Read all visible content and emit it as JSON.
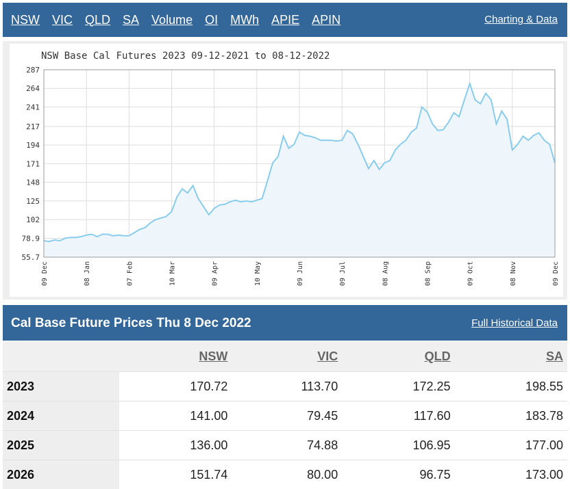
{
  "nav": {
    "items": [
      "NSW",
      "VIC",
      "QLD",
      "SA",
      "Volume",
      "OI",
      "MWh",
      "APIE",
      "APIN"
    ],
    "charting_link": "Charting & Data"
  },
  "chart": {
    "title": "NSW Base Cal Futures 2023 09-12-2021 to 08-12-2022"
  },
  "chart_data": {
    "type": "area",
    "title": "NSW Base Cal Futures 2023 09-12-2021 to 08-12-2022",
    "xlabel": "",
    "ylabel": "",
    "ylim": [
      55.7,
      287
    ],
    "y_ticks": [
      "287",
      "264",
      "241",
      "217",
      "194",
      "171",
      "148",
      "125",
      "102",
      "78.9",
      "55.7"
    ],
    "x_ticks": [
      "09 Dec",
      "08 Jan",
      "07 Feb",
      "10 Mar",
      "09 Apr",
      "10 May",
      "09 Jun",
      "09 Jul",
      "08 Aug",
      "08 Sep",
      "09 Oct",
      "08 Nov",
      "09 Dec"
    ],
    "grid": true,
    "line_color": "#88ccee",
    "fill_color": "#eef6fb",
    "series": [
      {
        "values": [
          76,
          75,
          77,
          76,
          79,
          80,
          80,
          81,
          83,
          84,
          81,
          84,
          84,
          82,
          83,
          82,
          82,
          86,
          90,
          92,
          98,
          102,
          104,
          106,
          112,
          130,
          140,
          135,
          144,
          128,
          118,
          108,
          116,
          120,
          121,
          124,
          126,
          124,
          125,
          124,
          126,
          128,
          150,
          172,
          180,
          205,
          190,
          195,
          210,
          206,
          205,
          203,
          200,
          200,
          200,
          199,
          200,
          212,
          208,
          195,
          180,
          165,
          175,
          164,
          172,
          175,
          188,
          195,
          200,
          210,
          215,
          241,
          235,
          220,
          212,
          213,
          222,
          234,
          229,
          250,
          270,
          250,
          245,
          258,
          250,
          220,
          236,
          226,
          188,
          195,
          205,
          200,
          206,
          209,
          200,
          195,
          172
        ]
      }
    ]
  },
  "table": {
    "title": "Cal Base Future Prices Thu 8 Dec 2022",
    "historical_link": "Full Historical Data",
    "columns": [
      "NSW",
      "VIC",
      "QLD",
      "SA"
    ],
    "rows": [
      {
        "year": "2023",
        "values": [
          "170.72",
          "113.70",
          "172.25",
          "198.55"
        ]
      },
      {
        "year": "2024",
        "values": [
          "141.00",
          "79.45",
          "117.60",
          "183.78"
        ]
      },
      {
        "year": "2025",
        "values": [
          "136.00",
          "74.88",
          "106.95",
          "177.00"
        ]
      },
      {
        "year": "2026",
        "values": [
          "151.74",
          "80.00",
          "96.75",
          "173.00"
        ]
      }
    ]
  }
}
